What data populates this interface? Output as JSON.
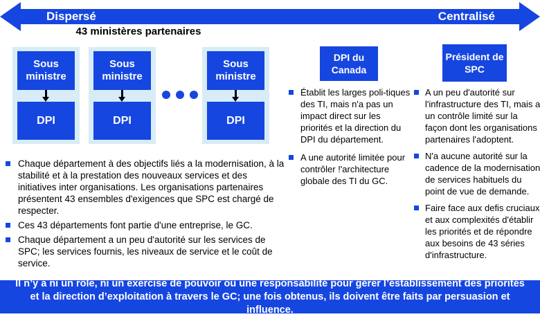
{
  "arrow": {
    "left_label": "Dispersé",
    "right_label": "Centralisé"
  },
  "partners_title": "43 ministères partenaires",
  "org_units": [
    {
      "top": "Sous ministre",
      "bottom": "DPI"
    },
    {
      "top": "Sous ministre",
      "bottom": "DPI"
    },
    {
      "top": "Sous ministre",
      "bottom": "DPI"
    }
  ],
  "left_column": {
    "bullets": [
      "Chaque département à des objectifs liés a la modernisation, à la stabilité et à la prestation des nouveaux services et des initiatives inter organisations. Les organisations partenaires présentent 43 ensembles d'exigences que SPC est chargé de respecter.",
      "Ces 43 départements font partie d'une entreprise, le GC.",
      "Chaque département a un peu d'autorité sur les services de SPC; les services fournis, les niveaux de service et le coût de service."
    ]
  },
  "middle_column": {
    "header": "DPI du Canada",
    "bullets": [
      "Établit les larges poli-tiques des TI, mais n'a pas un impact direct sur les priorités et la direction du DPI du département.",
      "A une autorité limitée pour contrôler !'architecture globale des TI du GC."
    ]
  },
  "right_column": {
    "header": "Président de SPC",
    "bullets": [
      "A un peu d'autorité sur l'infrastructure des TI, mais a un contrôle limité sur la façon dont les organisations partenaires l'adoptent.",
      "N'a aucune autorité sur la cadence de la modernisation de services habituels du point de vue de demande.",
      "Faire face aux defis cruciaux et aux complexités d'établir les priorités et de répondre aux besoins de 43 séries d'infrastructure."
    ]
  },
  "banner": {
    "text": "Il n’y a ni un rôle, ni un exercise de pouvoir ou une responsabilité pour gérer l’éstablissement des priorités et la direction d’exploitation à travers le GC; une fois obtenus, ils doivent être faits par persuasion et influence."
  },
  "colors": {
    "primary_blue": "#1646E0",
    "light_cyan": "#D7ECF6",
    "text_black": "#000000",
    "white": "#FFFFFF"
  }
}
